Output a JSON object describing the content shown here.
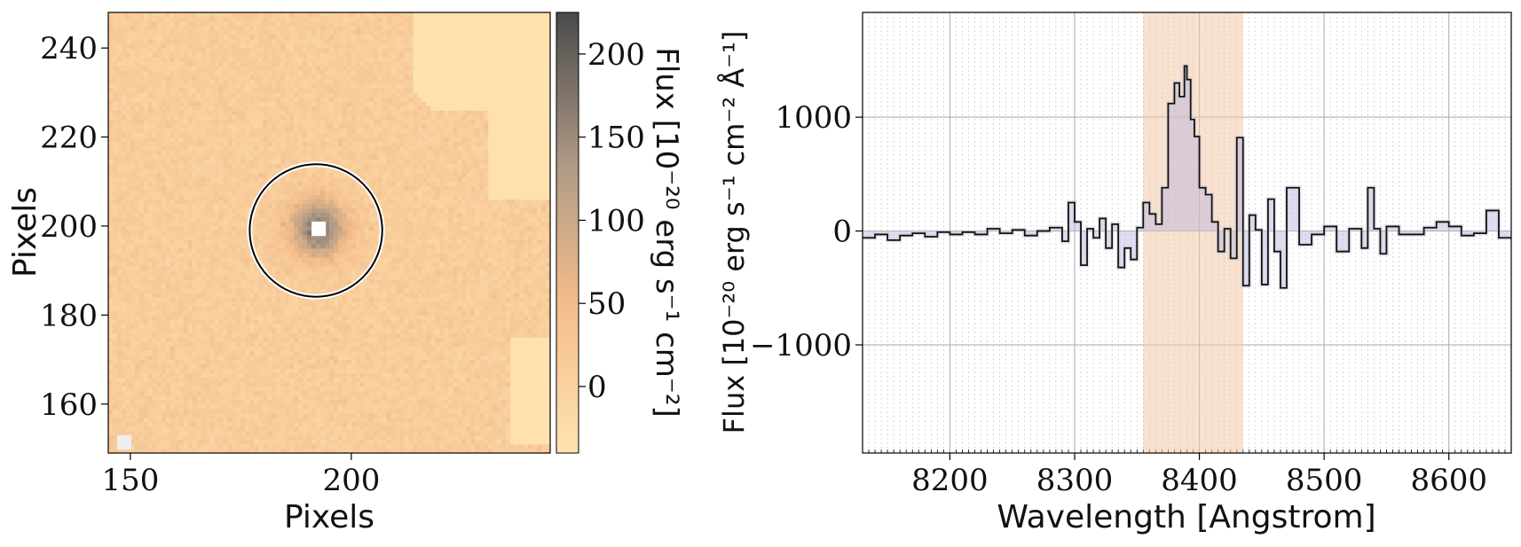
{
  "chart_data": [
    {
      "type": "heatmap",
      "xlabel": "Pixels",
      "ylabel": "Pixels",
      "x_ticks": [
        150,
        200
      ],
      "y_ticks": [
        160,
        180,
        200,
        220,
        240
      ],
      "xlim": [
        145,
        245
      ],
      "ylim": [
        149,
        248
      ],
      "source_center": [
        192,
        199
      ],
      "aperture_radius": 15,
      "colorbar": {
        "label": "Flux [10$^{-20}$ erg s$^{-1}$ cm$^{-2}$]",
        "label_display": "Flux [10⁻²⁰ erg s⁻¹ cm⁻²]",
        "ticks": [
          0,
          50,
          100,
          150,
          200
        ],
        "range": [
          -40,
          225
        ],
        "colormap": [
          "#ffe2b0",
          "#f2bc8a",
          "#b09a86",
          "#4a4a4a"
        ]
      }
    },
    {
      "type": "line",
      "xlabel": "Wavelength [Angstrom]",
      "ylabel": "Flux [10$^{-20}$ erg s$^{-1}$ cm$^{-2}$ Å$^{-1}$]",
      "ylabel_display": "Flux [10⁻²⁰ erg s⁻¹ cm⁻² Å⁻¹]",
      "x_ticks": [
        8200,
        8300,
        8400,
        8500,
        8600
      ],
      "y_ticks": [
        -1000,
        0,
        1000
      ],
      "y_tick_labels": [
        "−1000",
        "0",
        "1000"
      ],
      "xlim": [
        8130,
        8650
      ],
      "ylim": [
        -1950,
        1920
      ],
      "grid": true,
      "highlight_band": [
        8355,
        8435
      ],
      "series": [
        {
          "style": "step",
          "x": [
            8130,
            8140,
            8150,
            8160,
            8170,
            8180,
            8190,
            8200,
            8210,
            8220,
            8230,
            8240,
            8250,
            8260,
            8270,
            8280,
            8290,
            8295,
            8300,
            8305,
            8310,
            8315,
            8320,
            8325,
            8330,
            8335,
            8340,
            8345,
            8350,
            8355,
            8360,
            8365,
            8370,
            8375,
            8380,
            8384,
            8388,
            8390,
            8393,
            8396,
            8400,
            8405,
            8410,
            8415,
            8420,
            8425,
            8430,
            8435,
            8440,
            8445,
            8450,
            8455,
            8460,
            8465,
            8470,
            8480,
            8490,
            8500,
            8510,
            8520,
            8530,
            8535,
            8540,
            8545,
            8550,
            8560,
            8570,
            8580,
            8590,
            8600,
            8610,
            8620,
            8630,
            8640,
            8650
          ],
          "y": [
            -60,
            -30,
            -80,
            -40,
            -20,
            -50,
            -10,
            -30,
            -10,
            -30,
            20,
            -20,
            10,
            -40,
            0,
            30,
            -90,
            250,
            80,
            -300,
            20,
            -60,
            110,
            -150,
            60,
            -320,
            -150,
            -250,
            30,
            250,
            150,
            60,
            380,
            1120,
            1300,
            1180,
            1450,
            1330,
            980,
            830,
            380,
            320,
            80,
            -180,
            20,
            -240,
            820,
            -480,
            140,
            10,
            -470,
            280,
            -180,
            -500,
            380,
            -120,
            -30,
            40,
            -180,
            20,
            -150,
            380,
            20,
            -200,
            40,
            -30,
            -30,
            30,
            80,
            40,
            -40,
            -20,
            180,
            -60,
            -70
          ]
        }
      ]
    }
  ]
}
